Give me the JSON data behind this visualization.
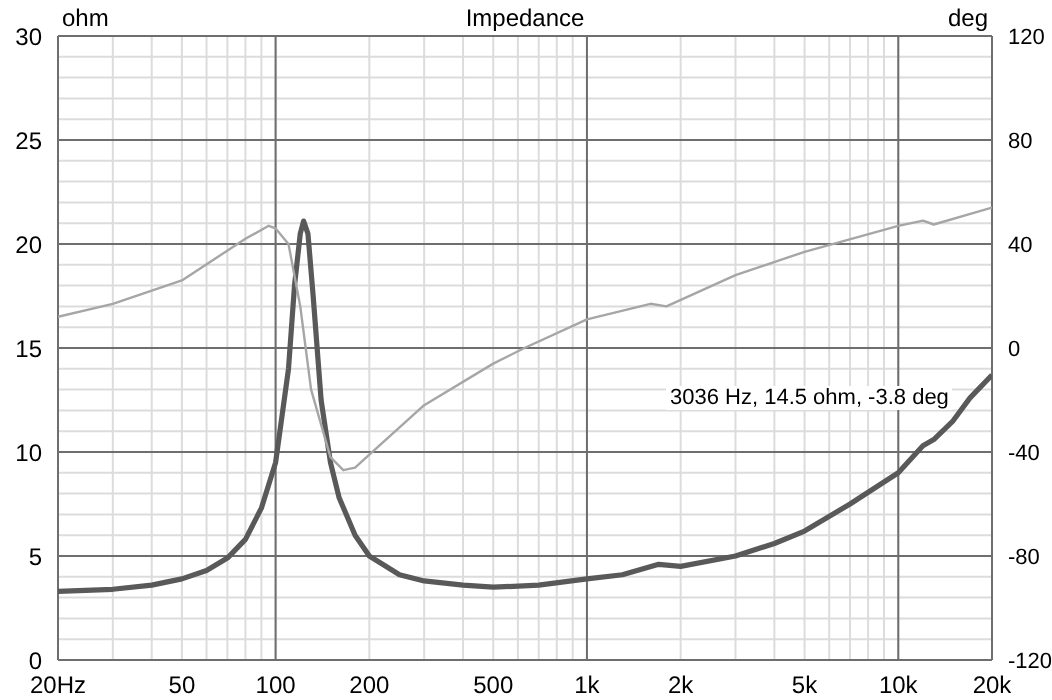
{
  "chart_data": {
    "type": "line",
    "title": "Impedance",
    "ylabel": "ohm",
    "y2label": "deg",
    "log": "x",
    "grid": true,
    "marker": "none",
    "annotations": [
      "3036 Hz, 14.5 ohm, -3.8 deg"
    ],
    "xlim": [
      20,
      20000
    ],
    "xticks": [
      {
        "value": 20,
        "label": "20Hz"
      },
      {
        "value": 30,
        "label": null
      },
      {
        "value": 40,
        "label": null
      },
      50,
      {
        "value": 60,
        "label": null
      },
      {
        "value": 70,
        "label": null
      },
      {
        "value": 80,
        "label": null
      },
      {
        "value": 90,
        "label": null
      },
      100,
      200,
      {
        "value": 300,
        "label": null
      },
      {
        "value": 400,
        "label": null
      },
      500,
      {
        "value": 600,
        "label": null
      },
      {
        "value": 700,
        "label": null
      },
      {
        "value": 800,
        "label": null
      },
      {
        "value": 900,
        "label": null
      },
      {
        "value": 1000,
        "label": "1k"
      },
      {
        "value": 2000,
        "label": "2k"
      },
      {
        "value": 3000,
        "label": null
      },
      {
        "value": 4000,
        "label": null
      },
      {
        "value": 5000,
        "label": "5k"
      },
      {
        "value": 6000,
        "label": null
      },
      {
        "value": 7000,
        "label": null
      },
      {
        "value": 8000,
        "label": null
      },
      {
        "value": 9000,
        "label": null
      },
      {
        "value": 10000,
        "label": "10k"
      },
      {
        "value": 20000,
        "label": "20k"
      }
    ],
    "ylim": [
      0,
      30
    ],
    "yticks": [
      0,
      {
        "value": 1,
        "label": null
      },
      {
        "value": 2,
        "label": null
      },
      {
        "value": 3,
        "label": null
      },
      {
        "value": 4,
        "label": null
      },
      5,
      {
        "value": 6,
        "label": null
      },
      {
        "value": 7,
        "label": null
      },
      {
        "value": 8,
        "label": null
      },
      {
        "value": 9,
        "label": null
      },
      10,
      {
        "value": 11,
        "label": null
      },
      {
        "value": 12,
        "label": null
      },
      {
        "value": 13,
        "label": null
      },
      {
        "value": 14,
        "label": null
      },
      15,
      {
        "value": 16,
        "label": null
      },
      {
        "value": 17,
        "label": null
      },
      {
        "value": 18,
        "label": null
      },
      {
        "value": 19,
        "label": null
      },
      20,
      {
        "value": 21,
        "label": null
      },
      {
        "value": 22,
        "label": null
      },
      {
        "value": 23,
        "label": null
      },
      {
        "value": 24,
        "label": null
      },
      25,
      {
        "value": 26,
        "label": null
      },
      {
        "value": 27,
        "label": null
      },
      {
        "value": 28,
        "label": null
      },
      {
        "value": 29,
        "label": null
      },
      30
    ],
    "y2lim": [
      -120,
      120
    ],
    "y2ticks": [
      -120,
      -80,
      -40,
      0,
      40,
      80,
      120
    ],
    "series": [
      {
        "color": "#595959",
        "x": [
          20,
          30,
          40,
          50,
          60,
          70,
          80,
          90,
          100,
          110,
          115,
          120,
          123,
          127,
          132,
          140,
          150,
          160,
          180,
          200,
          250,
          300,
          400,
          500,
          700,
          1000,
          1300,
          1700,
          2000,
          3000,
          4000,
          5000,
          7000,
          10000,
          12000,
          13000,
          15000,
          17000,
          20000
        ],
        "values": [
          3.3,
          3.4,
          3.6,
          3.9,
          4.3,
          4.9,
          5.8,
          7.3,
          9.5,
          14,
          18,
          20.5,
          21.1,
          20.5,
          17.5,
          12.5,
          9.5,
          7.8,
          6,
          5,
          4.1,
          3.8,
          3.6,
          3.5,
          3.6,
          3.9,
          4.1,
          4.6,
          4.5,
          5,
          5.6,
          6.2,
          7.5,
          9,
          10.3,
          10.6,
          11.5,
          12.6,
          13.7
        ]
      },
      {
        "color": "#a6a6a6",
        "axis": "y2",
        "x": [
          20,
          30,
          50,
          80,
          95,
          100,
          110,
          120,
          130,
          150,
          165,
          180,
          200,
          300,
          500,
          630,
          1000,
          1600,
          1800,
          3000,
          5000,
          10000,
          12000,
          13000,
          20000
        ],
        "values": [
          12,
          17,
          26,
          42,
          47,
          46,
          40,
          16,
          -16,
          -42,
          -47,
          -46,
          -41,
          -22,
          -6,
          0,
          11,
          17,
          16,
          28,
          37,
          47,
          49,
          47.5,
          54
        ]
      }
    ]
  }
}
